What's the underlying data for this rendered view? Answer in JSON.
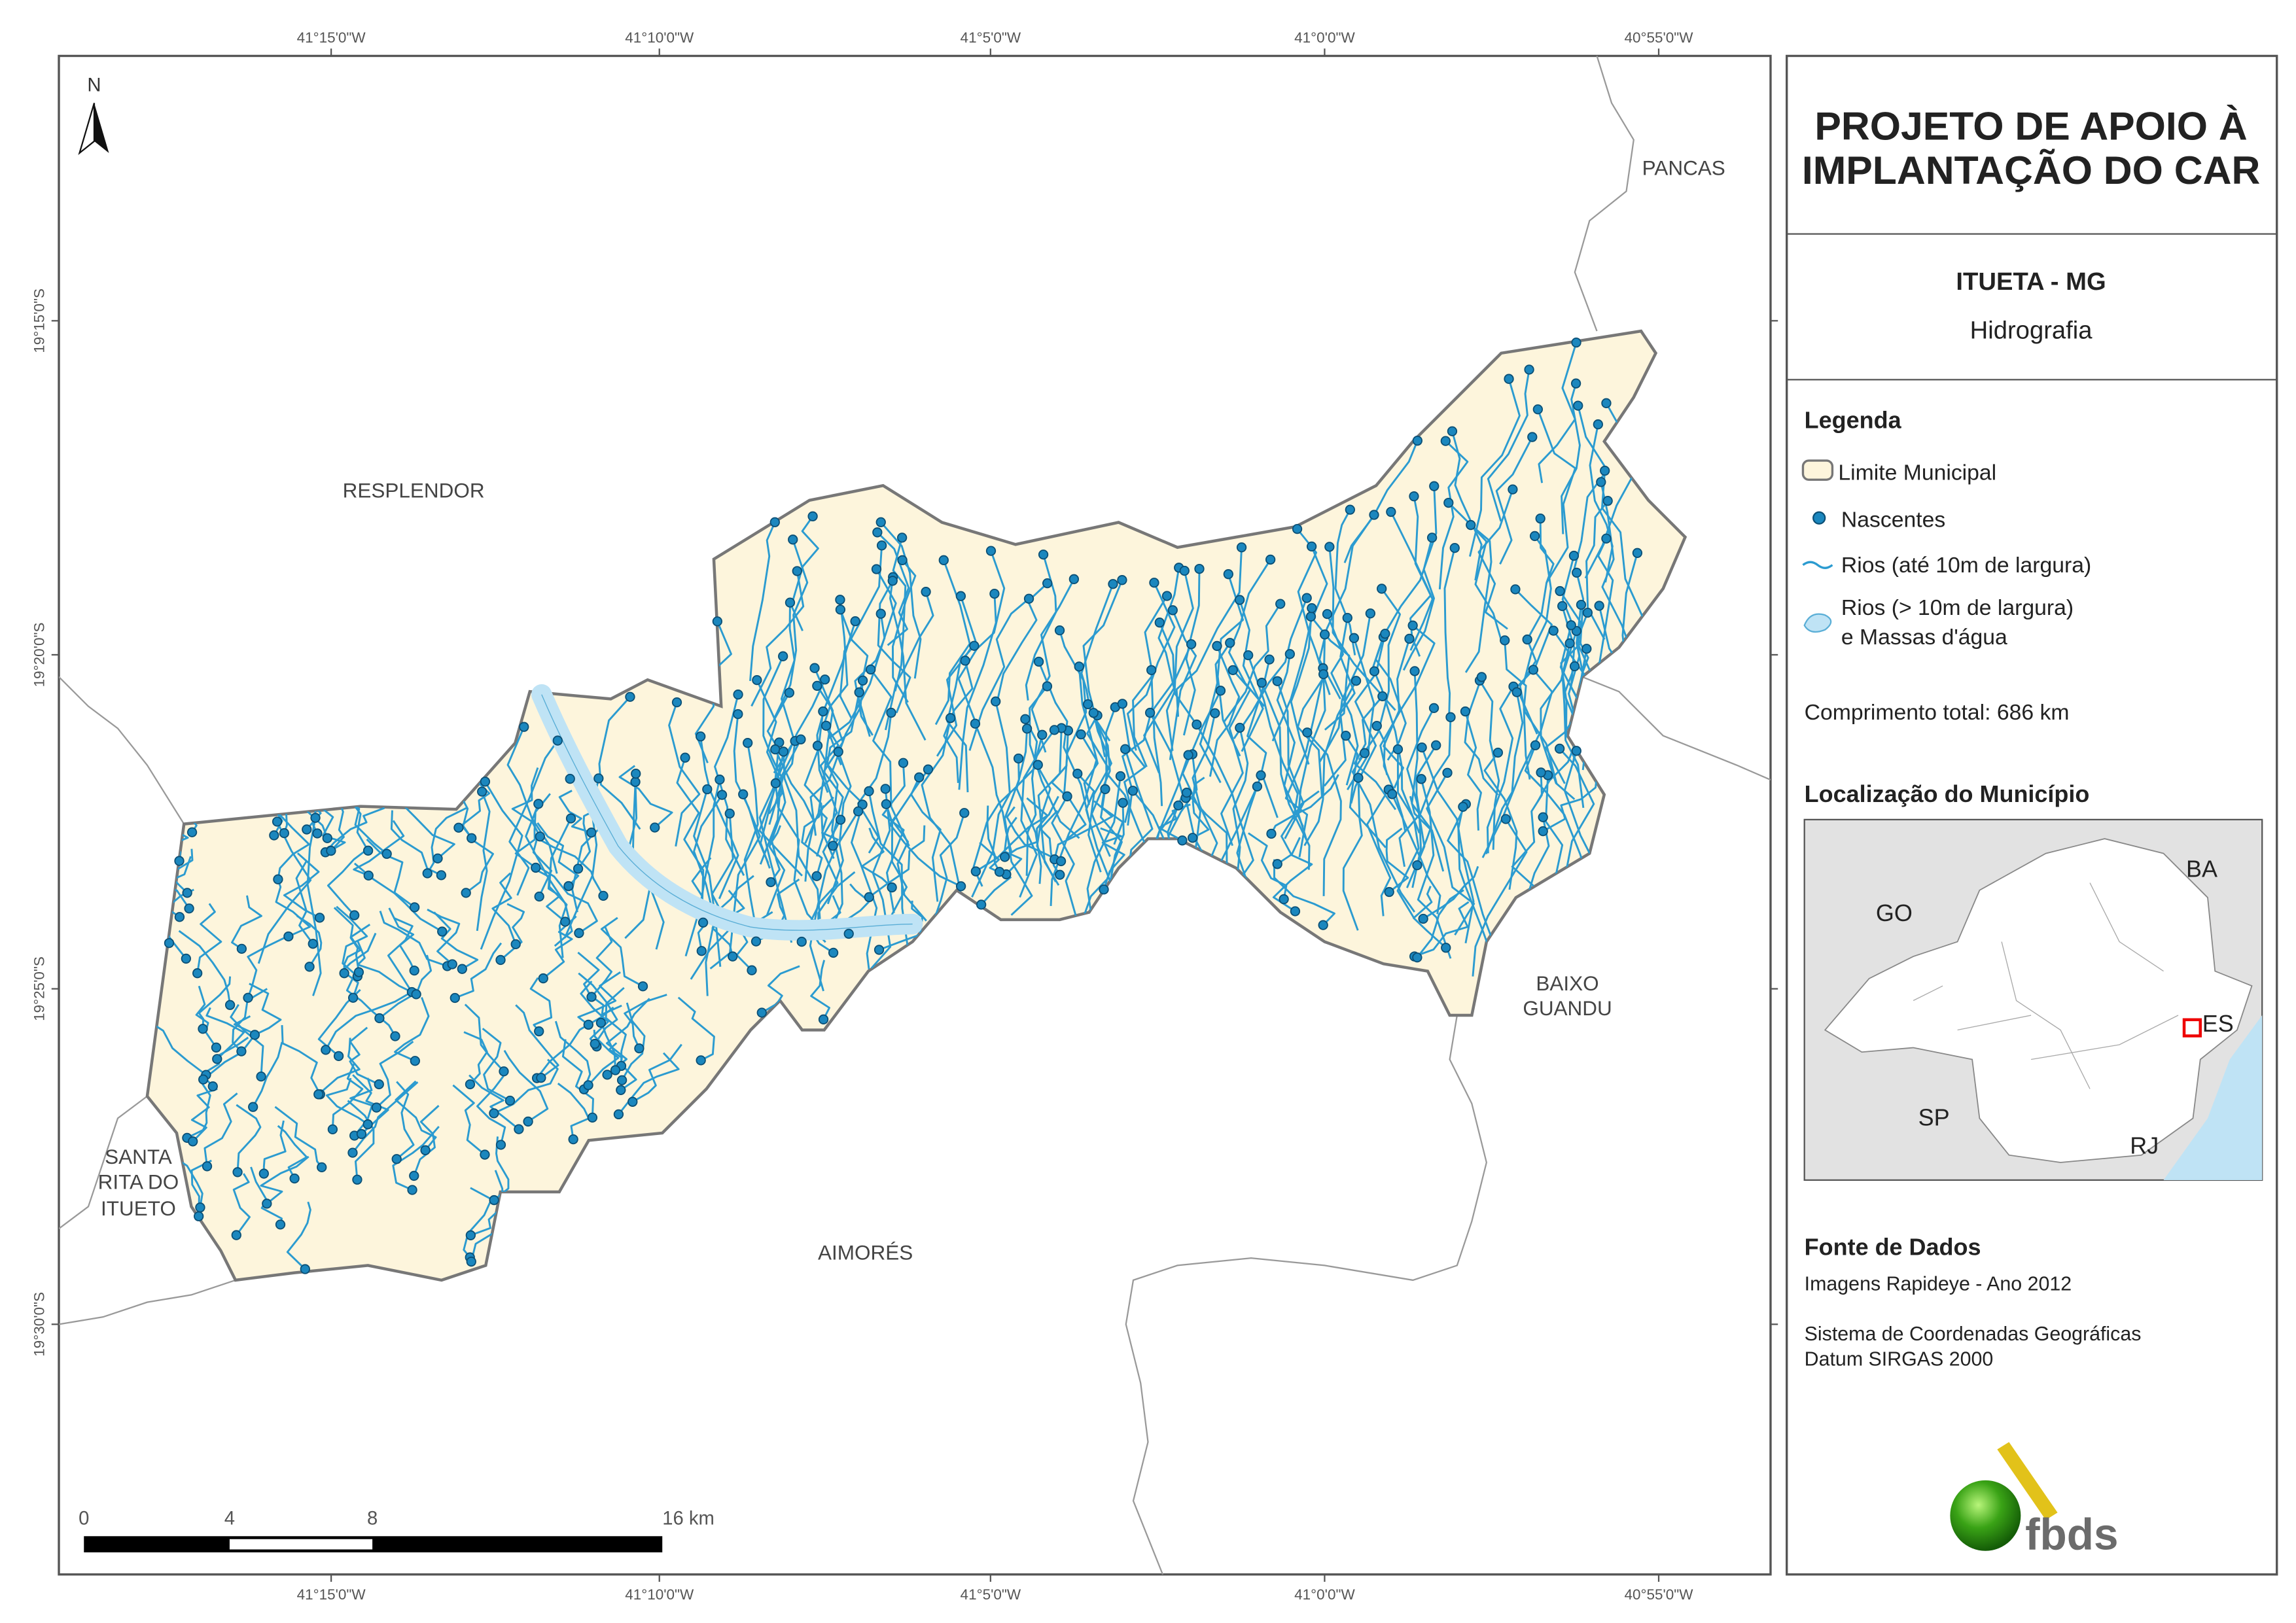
{
  "map": {
    "north": "N",
    "top_ticks": [
      "41°15'0\"W",
      "41°10'0\"W",
      "41°5'0\"W",
      "41°0'0\"W",
      "40°55'0\"W"
    ],
    "bottom_ticks": [
      "41°15'0\"W",
      "41°10'0\"W",
      "41°5'0\"W",
      "41°0'0\"W",
      "40°55'0\"W"
    ],
    "left_ticks": [
      "19°15'0\"S",
      "19°20'0\"S",
      "19°25'0\"S",
      "19°30'0\"S"
    ],
    "places": {
      "pancas": [
        "PANCAS"
      ],
      "resplendor": [
        "RESPLENDOR"
      ],
      "baixo_guandu": [
        "BAIXO",
        "GUANDU"
      ],
      "santa_rita": [
        "SANTA",
        "RITA DO",
        "ITUETO"
      ],
      "aimores": [
        "AIMORÉS"
      ]
    },
    "scale_bar": [
      "0",
      "4",
      "8",
      "16 km"
    ]
  },
  "panel": {
    "title": [
      "PROJETO DE APOIO À",
      "IMPLANTAÇÃO DO CAR"
    ],
    "subtitle": "ITUETA - MG",
    "theme": "Hidrografia",
    "legend": {
      "title": "Legenda",
      "items": [
        "Limite Municipal",
        "Nascentes",
        "Rios (até 10m de largura)",
        "Rios (> 10m de largura)",
        "e Massas d'água"
      ]
    },
    "total_length": "Comprimento total: 686 km",
    "location": {
      "title": "Localização do Município",
      "labels": [
        "BA",
        "GO",
        "ES",
        "SP",
        "RJ"
      ]
    },
    "sources": {
      "title": "Fonte de Dados",
      "lines": [
        "Imagens Rapideye - Ano 2012",
        "Sistema de Coordenadas Geográficas",
        "Datum SIRGAS 2000"
      ]
    },
    "logo": "fbds"
  }
}
